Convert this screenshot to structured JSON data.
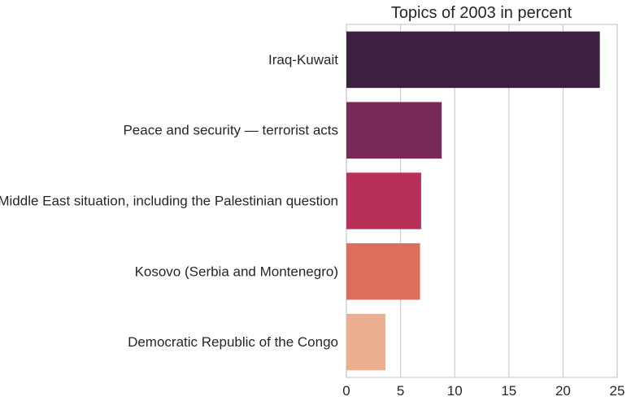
{
  "chart_data": {
    "type": "bar",
    "orientation": "horizontal",
    "title": "Topics of 2003 in percent",
    "xlabel": "",
    "ylabel": "",
    "categories": [
      "Iraq-Kuwait",
      "Peace and security — terrorist acts",
      "Middle East situation, including the Palestinian question",
      "Kosovo (Serbia and Montenegro)",
      "Democratic Republic of the Congo"
    ],
    "values": [
      23.4,
      8.8,
      6.9,
      6.8,
      3.6
    ],
    "colors": [
      "#3b213f",
      "#772a58",
      "#b83058",
      "#dd6e5a",
      "#ebaf90"
    ],
    "xlim": [
      0,
      25
    ],
    "xticks": [
      "0",
      "5",
      "10",
      "15",
      "20",
      "25"
    ],
    "grid": "vertical",
    "legend": "none"
  }
}
